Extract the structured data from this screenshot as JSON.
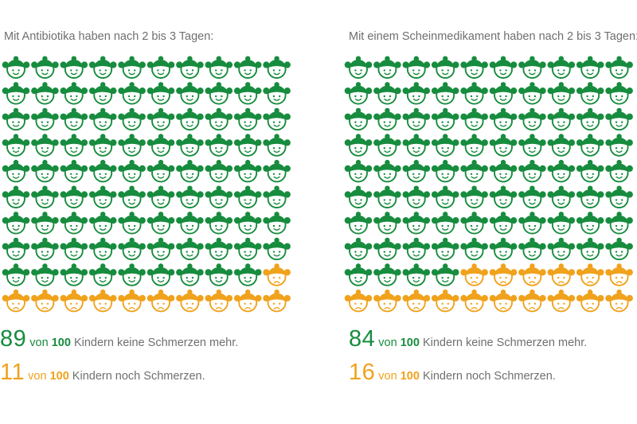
{
  "colors": {
    "no_pain": "#178c3e",
    "pain": "#f0a21c",
    "text": "#6f6f6f"
  },
  "icon": "child-face-icon",
  "chart_data": [
    {
      "type": "icon-array",
      "title": "Mit Antibiotika haben nach 2 bis 3 Tagen:",
      "total": 100,
      "grid": {
        "rows": 10,
        "cols": 10
      },
      "series": [
        {
          "value": 89,
          "color": "#178c3e"
        },
        {
          "value": 11,
          "color": "#f0a21c"
        }
      ],
      "labels": [
        {
          "big": "89",
          "von": "von",
          "total": "100",
          "rest": "Kindern keine Schmerzen mehr."
        },
        {
          "big": "11",
          "von": "von",
          "total": "100",
          "rest": "Kindern noch Schmerzen."
        }
      ]
    },
    {
      "type": "icon-array",
      "title": "Mit einem Scheinmedikament haben nach 2 bis 3 Tagen:",
      "total": 100,
      "grid": {
        "rows": 10,
        "cols": 10
      },
      "series": [
        {
          "value": 84,
          "color": "#178c3e"
        },
        {
          "value": 16,
          "color": "#f0a21c"
        }
      ],
      "labels": [
        {
          "big": "84",
          "von": "von",
          "total": "100",
          "rest": "Kindern keine Schmerzen mehr."
        },
        {
          "big": "16",
          "von": "von",
          "total": "100",
          "rest": "Kindern noch Schmerzen."
        }
      ]
    }
  ]
}
